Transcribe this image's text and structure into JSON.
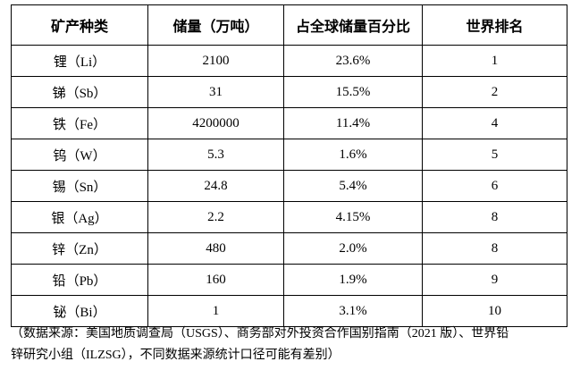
{
  "table": {
    "header": [
      "矿产种类",
      "储量（万吨）",
      "占全球储量百分比",
      "世界排名"
    ],
    "rows": [
      [
        "锂（Li）",
        "2100",
        "23.6%",
        "1"
      ],
      [
        "锑（Sb）",
        "31",
        "15.5%",
        "2"
      ],
      [
        "铁（Fe）",
        "4200000",
        "11.4%",
        "4"
      ],
      [
        "钨（W）",
        "5.3",
        "1.6%",
        "5"
      ],
      [
        "锡（Sn）",
        "24.8",
        "5.4%",
        "6"
      ],
      [
        "银（Ag）",
        "2.2",
        "4.15%",
        "8"
      ],
      [
        "锌（Zn）",
        "480",
        "2.0%",
        "8"
      ],
      [
        "铅（Pb）",
        "160",
        "1.9%",
        "9"
      ],
      [
        "铋（Bi）",
        "1",
        "3.1%",
        "10"
      ]
    ]
  },
  "note": [
    "（数据来源：美国地质调查局（USGS）、商务部对外投资合作国别指南（2021 版）、世界铅",
    "锌研究小组（ILZSG），不同数据来源统计口径可能有差别）"
  ]
}
